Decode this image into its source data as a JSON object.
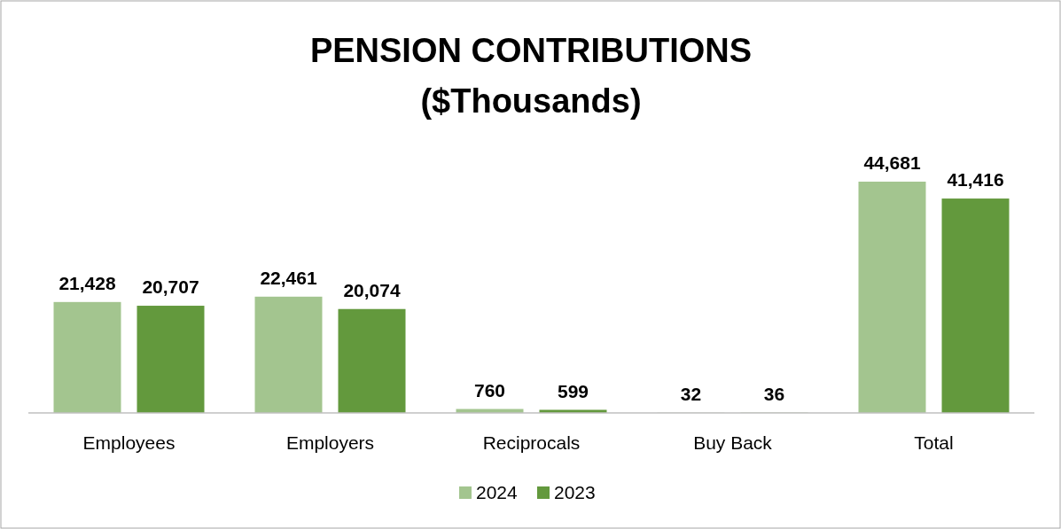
{
  "chart_data": {
    "type": "bar",
    "title": "PENSION CONTRIBUTIONS",
    "subtitle": "($Thousands)",
    "categories": [
      "Employees",
      "Employers",
      "Reciprocals",
      "Buy Back",
      "Total"
    ],
    "series": [
      {
        "name": "2024",
        "color": "#a3c58f",
        "values": [
          21428,
          22461,
          760,
          32,
          44681
        ],
        "value_labels": [
          "21,428",
          "22,461",
          "760",
          "32",
          "44,681"
        ]
      },
      {
        "name": "2023",
        "color": "#63993d",
        "values": [
          20707,
          20074,
          599,
          36,
          41416
        ],
        "value_labels": [
          "20,707",
          "20,074",
          "599",
          "36",
          "41,416"
        ]
      }
    ],
    "legend": "bottom",
    "grid": false
  }
}
